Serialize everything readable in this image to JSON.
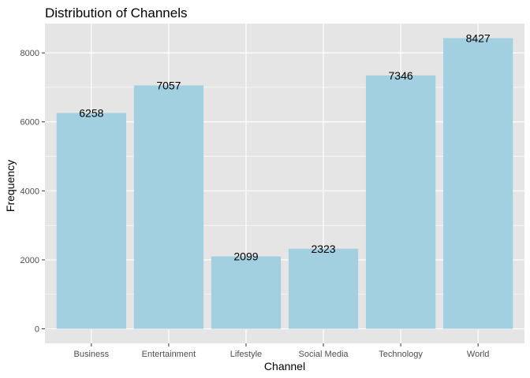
{
  "chart_data": {
    "type": "bar",
    "title": "Distribution of Channels",
    "xlabel": "Channel",
    "ylabel": "Frequency",
    "categories": [
      "Business",
      "Entertainment",
      "Lifestyle",
      "Social Media",
      "Technology",
      "World"
    ],
    "values": [
      6258,
      7057,
      2099,
      2323,
      7346,
      8427
    ],
    "data_labels": [
      "6258",
      "7057",
      "2099",
      "2323",
      "7346",
      "8427"
    ],
    "yticks": [
      0,
      2000,
      4000,
      6000,
      8000
    ],
    "ytick_labels": [
      "0",
      "2000",
      "4000",
      "6000",
      "8000"
    ],
    "ylim": [
      -421,
      8848
    ],
    "grid": true,
    "legend": "none",
    "colors": {
      "bar": "#a2d0e1",
      "panel": "#e5e5e5",
      "gridline": "#ffffff",
      "tick": "#333333"
    }
  }
}
